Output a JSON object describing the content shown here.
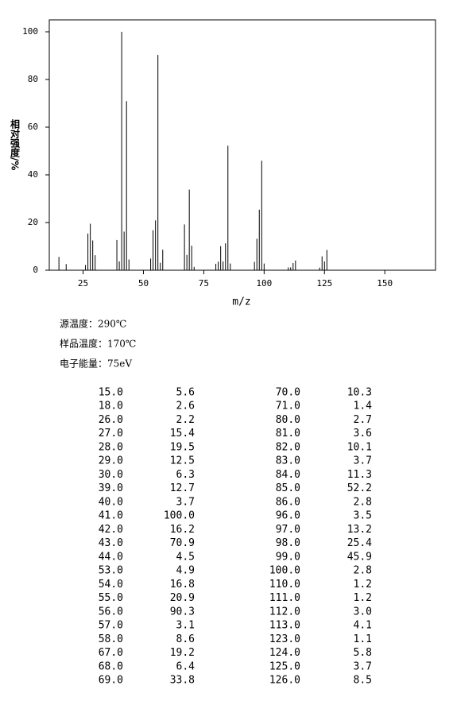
{
  "chart_data": {
    "type": "stick",
    "xlabel": "m/z",
    "ylabel": "相对强度/%",
    "color": "#000000",
    "x": [
      15,
      18,
      26,
      27,
      28,
      29,
      30,
      39,
      40,
      41,
      42,
      43,
      44,
      53,
      54,
      55,
      56,
      57,
      58,
      67,
      68,
      69,
      70,
      71,
      80,
      81,
      82,
      83,
      84,
      85,
      86,
      96,
      97,
      98,
      99,
      100,
      110,
      111,
      112,
      113,
      123,
      124,
      125,
      126
    ],
    "values": [
      5.6,
      2.6,
      2.2,
      15.4,
      19.5,
      12.5,
      6.3,
      12.7,
      3.7,
      100.0,
      16.2,
      70.9,
      4.5,
      4.9,
      16.8,
      20.9,
      90.3,
      3.1,
      8.6,
      19.2,
      6.4,
      33.8,
      10.3,
      1.4,
      2.7,
      3.6,
      10.1,
      3.7,
      11.3,
      52.2,
      2.8,
      3.5,
      13.2,
      25.4,
      45.9,
      2.8,
      1.2,
      1.2,
      3.0,
      4.1,
      1.1,
      5.8,
      3.7,
      8.5
    ],
    "xlim": [
      11,
      171
    ],
    "ylim": [
      0,
      105
    ],
    "xticks": [
      25,
      50,
      75,
      100,
      125,
      150
    ],
    "yticks": [
      0,
      20,
      40,
      60,
      80,
      100
    ]
  },
  "info": [
    "源温度：290℃",
    "样品温度：170℃",
    "电子能量：75eV"
  ],
  "table": {
    "rows": [
      [
        "15.0",
        "5.6",
        "70.0",
        "10.3"
      ],
      [
        "18.0",
        "2.6",
        "71.0",
        "1.4"
      ],
      [
        "26.0",
        "2.2",
        "80.0",
        "2.7"
      ],
      [
        "27.0",
        "15.4",
        "81.0",
        "3.6"
      ],
      [
        "28.0",
        "19.5",
        "82.0",
        "10.1"
      ],
      [
        "29.0",
        "12.5",
        "83.0",
        "3.7"
      ],
      [
        "30.0",
        "6.3",
        "84.0",
        "11.3"
      ],
      [
        "39.0",
        "12.7",
        "85.0",
        "52.2"
      ],
      [
        "40.0",
        "3.7",
        "86.0",
        "2.8"
      ],
      [
        "41.0",
        "100.0",
        "96.0",
        "3.5"
      ],
      [
        "42.0",
        "16.2",
        "97.0",
        "13.2"
      ],
      [
        "43.0",
        "70.9",
        "98.0",
        "25.4"
      ],
      [
        "44.0",
        "4.5",
        "99.0",
        "45.9"
      ],
      [
        "53.0",
        "4.9",
        "100.0",
        "2.8"
      ],
      [
        "54.0",
        "16.8",
        "110.0",
        "1.2"
      ],
      [
        "55.0",
        "20.9",
        "111.0",
        "1.2"
      ],
      [
        "56.0",
        "90.3",
        "112.0",
        "3.0"
      ],
      [
        "57.0",
        "3.1",
        "113.0",
        "4.1"
      ],
      [
        "58.0",
        "8.6",
        "123.0",
        "1.1"
      ],
      [
        "67.0",
        "19.2",
        "124.0",
        "5.8"
      ],
      [
        "68.0",
        "6.4",
        "125.0",
        "3.7"
      ],
      [
        "69.0",
        "33.8",
        "126.0",
        "8.5"
      ]
    ]
  }
}
